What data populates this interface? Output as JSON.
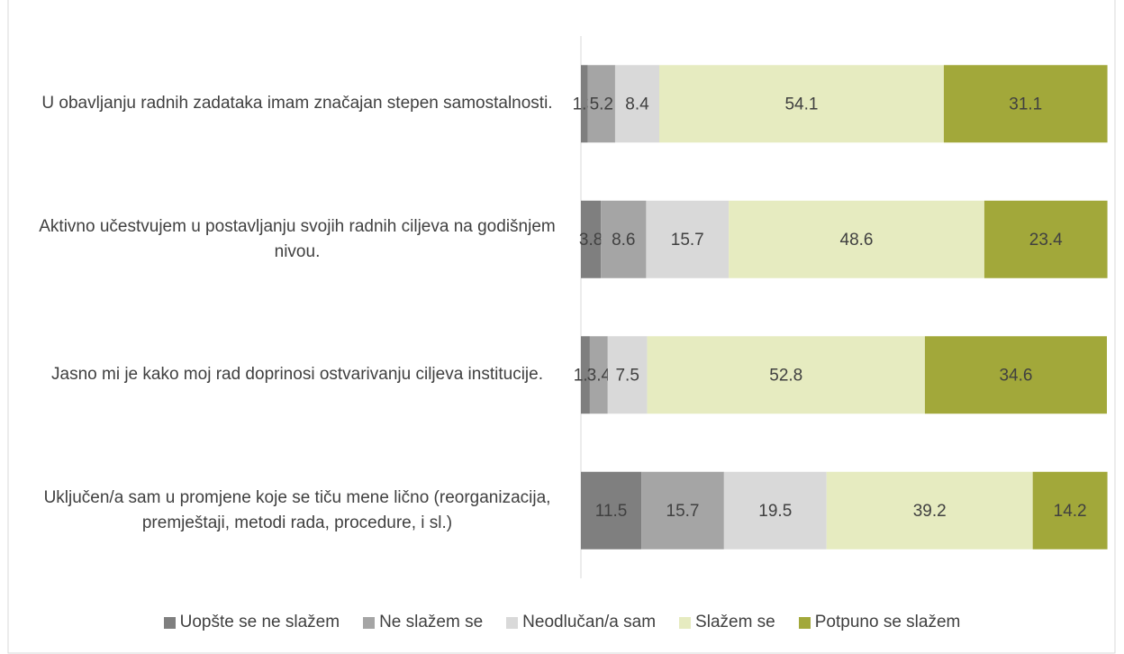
{
  "chart_data": {
    "type": "stacked-bar-horizontal",
    "categories": [
      "U obavljanju radnih zadataka imam značajan stepen samostalnosti.",
      "Aktivno učestvujem u postavljanju svojih radnih ciljeva na godišnjem nivou.",
      "Jasno mi je kako moj rad doprinosi ostvarivanju ciljeva institucije.",
      "Uključen/a sam u promjene koje se tiču mene lično (reorganizacija, premještaji, metodi rada, procedure, i sl.)"
    ],
    "series": [
      {
        "name": "Uopšte se ne slažem",
        "color": "#7f7f7f",
        "values": [
          1.3,
          3.8,
          1.7,
          11.5
        ]
      },
      {
        "name": "Ne slažem se",
        "color": "#a5a5a5",
        "values": [
          5.2,
          8.6,
          3.4,
          15.7
        ]
      },
      {
        "name": "Neodlučan/a sam",
        "color": "#d9d9d9",
        "values": [
          8.4,
          15.7,
          7.5,
          19.5
        ]
      },
      {
        "name": "Slažem se",
        "color": "#e6ebc0",
        "values": [
          54.1,
          48.6,
          52.8,
          39.2
        ]
      },
      {
        "name": "Potpuno se slažem",
        "color": "#a2a83a",
        "values": [
          31.1,
          23.4,
          34.6,
          14.2
        ]
      }
    ],
    "xlim": [
      0,
      100
    ],
    "legend": "bottom"
  }
}
